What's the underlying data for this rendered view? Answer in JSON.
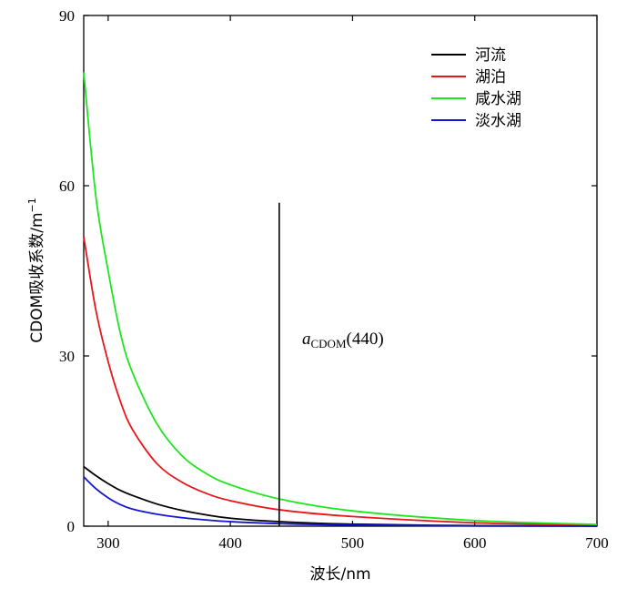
{
  "chart_data": {
    "type": "line",
    "xlabel": "波长/nm",
    "ylabel_main": "CDOM吸收系数/m",
    "ylabel_sup": "−1",
    "xlim": [
      280,
      700
    ],
    "ylim": [
      0,
      90
    ],
    "xticks": [
      300,
      400,
      500,
      600,
      700
    ],
    "yticks": [
      0,
      30,
      60,
      90
    ],
    "xtick_labels": [
      "300",
      "400",
      "500",
      "600",
      "700"
    ],
    "ytick_labels": [
      "0",
      "30",
      "60",
      "90"
    ],
    "legend_position": "top-right",
    "series": [
      {
        "name": "河流",
        "color": "#000000",
        "x": [
          280,
          290,
          300,
          310,
          320,
          340,
          360,
          380,
          400,
          440,
          500,
          600,
          700
        ],
        "y": [
          10.5,
          8.9,
          7.5,
          6.3,
          5.4,
          3.9,
          2.8,
          2.0,
          1.4,
          0.8,
          0.35,
          0.1,
          0.03
        ]
      },
      {
        "name": "湖泊",
        "color": "#e8151a",
        "x": [
          280,
          290,
          300,
          310,
          320,
          340,
          360,
          380,
          400,
          440,
          500,
          600,
          700
        ],
        "y": [
          51,
          38,
          29,
          22,
          17,
          11,
          7.8,
          5.8,
          4.5,
          2.9,
          1.7,
          0.6,
          0.2
        ]
      },
      {
        "name": "咸水湖",
        "color": "#1ee61e",
        "x": [
          280,
          290,
          300,
          310,
          320,
          340,
          360,
          380,
          400,
          440,
          500,
          600,
          700
        ],
        "y": [
          80,
          58,
          45,
          34,
          27,
          18,
          12.5,
          9.3,
          7.3,
          4.8,
          2.7,
          1.0,
          0.3
        ]
      },
      {
        "name": "淡水湖",
        "color": "#1414d4",
        "x": [
          280,
          290,
          300,
          310,
          320,
          340,
          360,
          380,
          400,
          440,
          500,
          600,
          700
        ],
        "y": [
          8.7,
          6.6,
          5.0,
          3.8,
          3.0,
          2.1,
          1.5,
          1.1,
          0.8,
          0.45,
          0.2,
          0.05,
          0.01
        ]
      }
    ],
    "reference_line": {
      "x": 440,
      "y_top": 57
    },
    "annotation": {
      "main": "a",
      "sub": "CDOM",
      "tail": "(440)"
    }
  }
}
